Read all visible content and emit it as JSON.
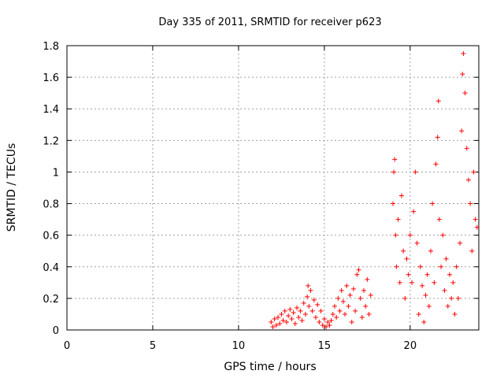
{
  "chart_data": {
    "type": "scatter",
    "title": "Day 335 of 2011, SRMTID for receiver p623",
    "xlabel": "GPS time / hours",
    "ylabel": "SRMTID / TECUs",
    "xlim": [
      0,
      24
    ],
    "ylim": [
      0,
      1.8
    ],
    "x_ticks": [
      0,
      5,
      10,
      15,
      20
    ],
    "y_ticks": [
      0,
      0.2,
      0.4,
      0.6,
      0.8,
      1.0,
      1.2,
      1.4,
      1.6,
      1.8
    ],
    "x_tick_labels": [
      "0",
      "5",
      "10",
      "15",
      "20"
    ],
    "y_tick_labels": [
      "0",
      "0.2",
      "0.4",
      "0.6",
      "0.8",
      "1",
      "1.2",
      "1.4",
      "1.6",
      "1.8"
    ],
    "grid": true,
    "marker": "+",
    "color": "#ff0000",
    "series": [
      {
        "name": "SRMTID",
        "points": [
          [
            11.9,
            0.05
          ],
          [
            12.0,
            0.02
          ],
          [
            12.1,
            0.07
          ],
          [
            12.2,
            0.03
          ],
          [
            12.3,
            0.08
          ],
          [
            12.4,
            0.04
          ],
          [
            12.5,
            0.1
          ],
          [
            12.6,
            0.06
          ],
          [
            12.7,
            0.12
          ],
          [
            12.8,
            0.05
          ],
          [
            12.9,
            0.09
          ],
          [
            13.0,
            0.13
          ],
          [
            13.1,
            0.07
          ],
          [
            13.2,
            0.11
          ],
          [
            13.3,
            0.04
          ],
          [
            13.4,
            0.14
          ],
          [
            13.5,
            0.08
          ],
          [
            13.6,
            0.12
          ],
          [
            13.7,
            0.06
          ],
          [
            13.8,
            0.17
          ],
          [
            13.9,
            0.1
          ],
          [
            14.0,
            0.21
          ],
          [
            14.05,
            0.28
          ],
          [
            14.1,
            0.15
          ],
          [
            14.2,
            0.25
          ],
          [
            14.3,
            0.12
          ],
          [
            14.4,
            0.19
          ],
          [
            14.5,
            0.08
          ],
          [
            14.6,
            0.16
          ],
          [
            14.7,
            0.05
          ],
          [
            14.8,
            0.12
          ],
          [
            14.9,
            0.03
          ],
          [
            15.0,
            0.07
          ],
          [
            15.1,
            0.02
          ],
          [
            15.2,
            0.05
          ],
          [
            15.3,
            0.03
          ],
          [
            15.4,
            0.06
          ],
          [
            15.5,
            0.1
          ],
          [
            15.6,
            0.15
          ],
          [
            15.7,
            0.08
          ],
          [
            15.8,
            0.2
          ],
          [
            15.9,
            0.12
          ],
          [
            16.0,
            0.25
          ],
          [
            16.1,
            0.18
          ],
          [
            16.2,
            0.1
          ],
          [
            16.3,
            0.28
          ],
          [
            16.4,
            0.15
          ],
          [
            16.5,
            0.22
          ],
          [
            16.6,
            0.05
          ],
          [
            16.7,
            0.26
          ],
          [
            16.8,
            0.12
          ],
          [
            16.9,
            0.35
          ],
          [
            17.0,
            0.38
          ],
          [
            17.1,
            0.2
          ],
          [
            17.2,
            0.08
          ],
          [
            17.3,
            0.25
          ],
          [
            17.4,
            0.15
          ],
          [
            17.5,
            0.32
          ],
          [
            17.6,
            0.1
          ],
          [
            17.7,
            0.22
          ],
          [
            19.0,
            0.8
          ],
          [
            19.05,
            1.0
          ],
          [
            19.1,
            1.08
          ],
          [
            19.15,
            0.6
          ],
          [
            19.2,
            0.4
          ],
          [
            19.3,
            0.7
          ],
          [
            19.4,
            0.3
          ],
          [
            19.5,
            0.85
          ],
          [
            19.6,
            0.5
          ],
          [
            19.7,
            0.2
          ],
          [
            19.8,
            0.45
          ],
          [
            19.9,
            0.35
          ],
          [
            20.0,
            0.6
          ],
          [
            20.1,
            0.3
          ],
          [
            20.2,
            0.75
          ],
          [
            20.3,
            1.0
          ],
          [
            20.4,
            0.55
          ],
          [
            20.5,
            0.1
          ],
          [
            20.6,
            0.4
          ],
          [
            20.7,
            0.28
          ],
          [
            20.8,
            0.05
          ],
          [
            20.9,
            0.22
          ],
          [
            21.0,
            0.35
          ],
          [
            21.1,
            0.15
          ],
          [
            21.2,
            0.5
          ],
          [
            21.3,
            0.8
          ],
          [
            21.4,
            0.3
          ],
          [
            21.5,
            1.05
          ],
          [
            21.6,
            1.22
          ],
          [
            21.65,
            1.45
          ],
          [
            21.7,
            0.7
          ],
          [
            21.8,
            0.4
          ],
          [
            21.9,
            0.6
          ],
          [
            22.0,
            0.25
          ],
          [
            22.1,
            0.45
          ],
          [
            22.2,
            0.15
          ],
          [
            22.3,
            0.35
          ],
          [
            22.4,
            0.2
          ],
          [
            22.5,
            0.3
          ],
          [
            22.6,
            0.1
          ],
          [
            22.7,
            0.4
          ],
          [
            22.8,
            0.2
          ],
          [
            22.9,
            0.55
          ],
          [
            23.0,
            1.26
          ],
          [
            23.05,
            1.62
          ],
          [
            23.1,
            1.75
          ],
          [
            23.2,
            1.5
          ],
          [
            23.3,
            1.15
          ],
          [
            23.4,
            0.95
          ],
          [
            23.5,
            0.8
          ],
          [
            23.6,
            0.5
          ],
          [
            23.7,
            1.0
          ],
          [
            23.8,
            0.7
          ],
          [
            23.9,
            0.65
          ]
        ]
      }
    ]
  }
}
